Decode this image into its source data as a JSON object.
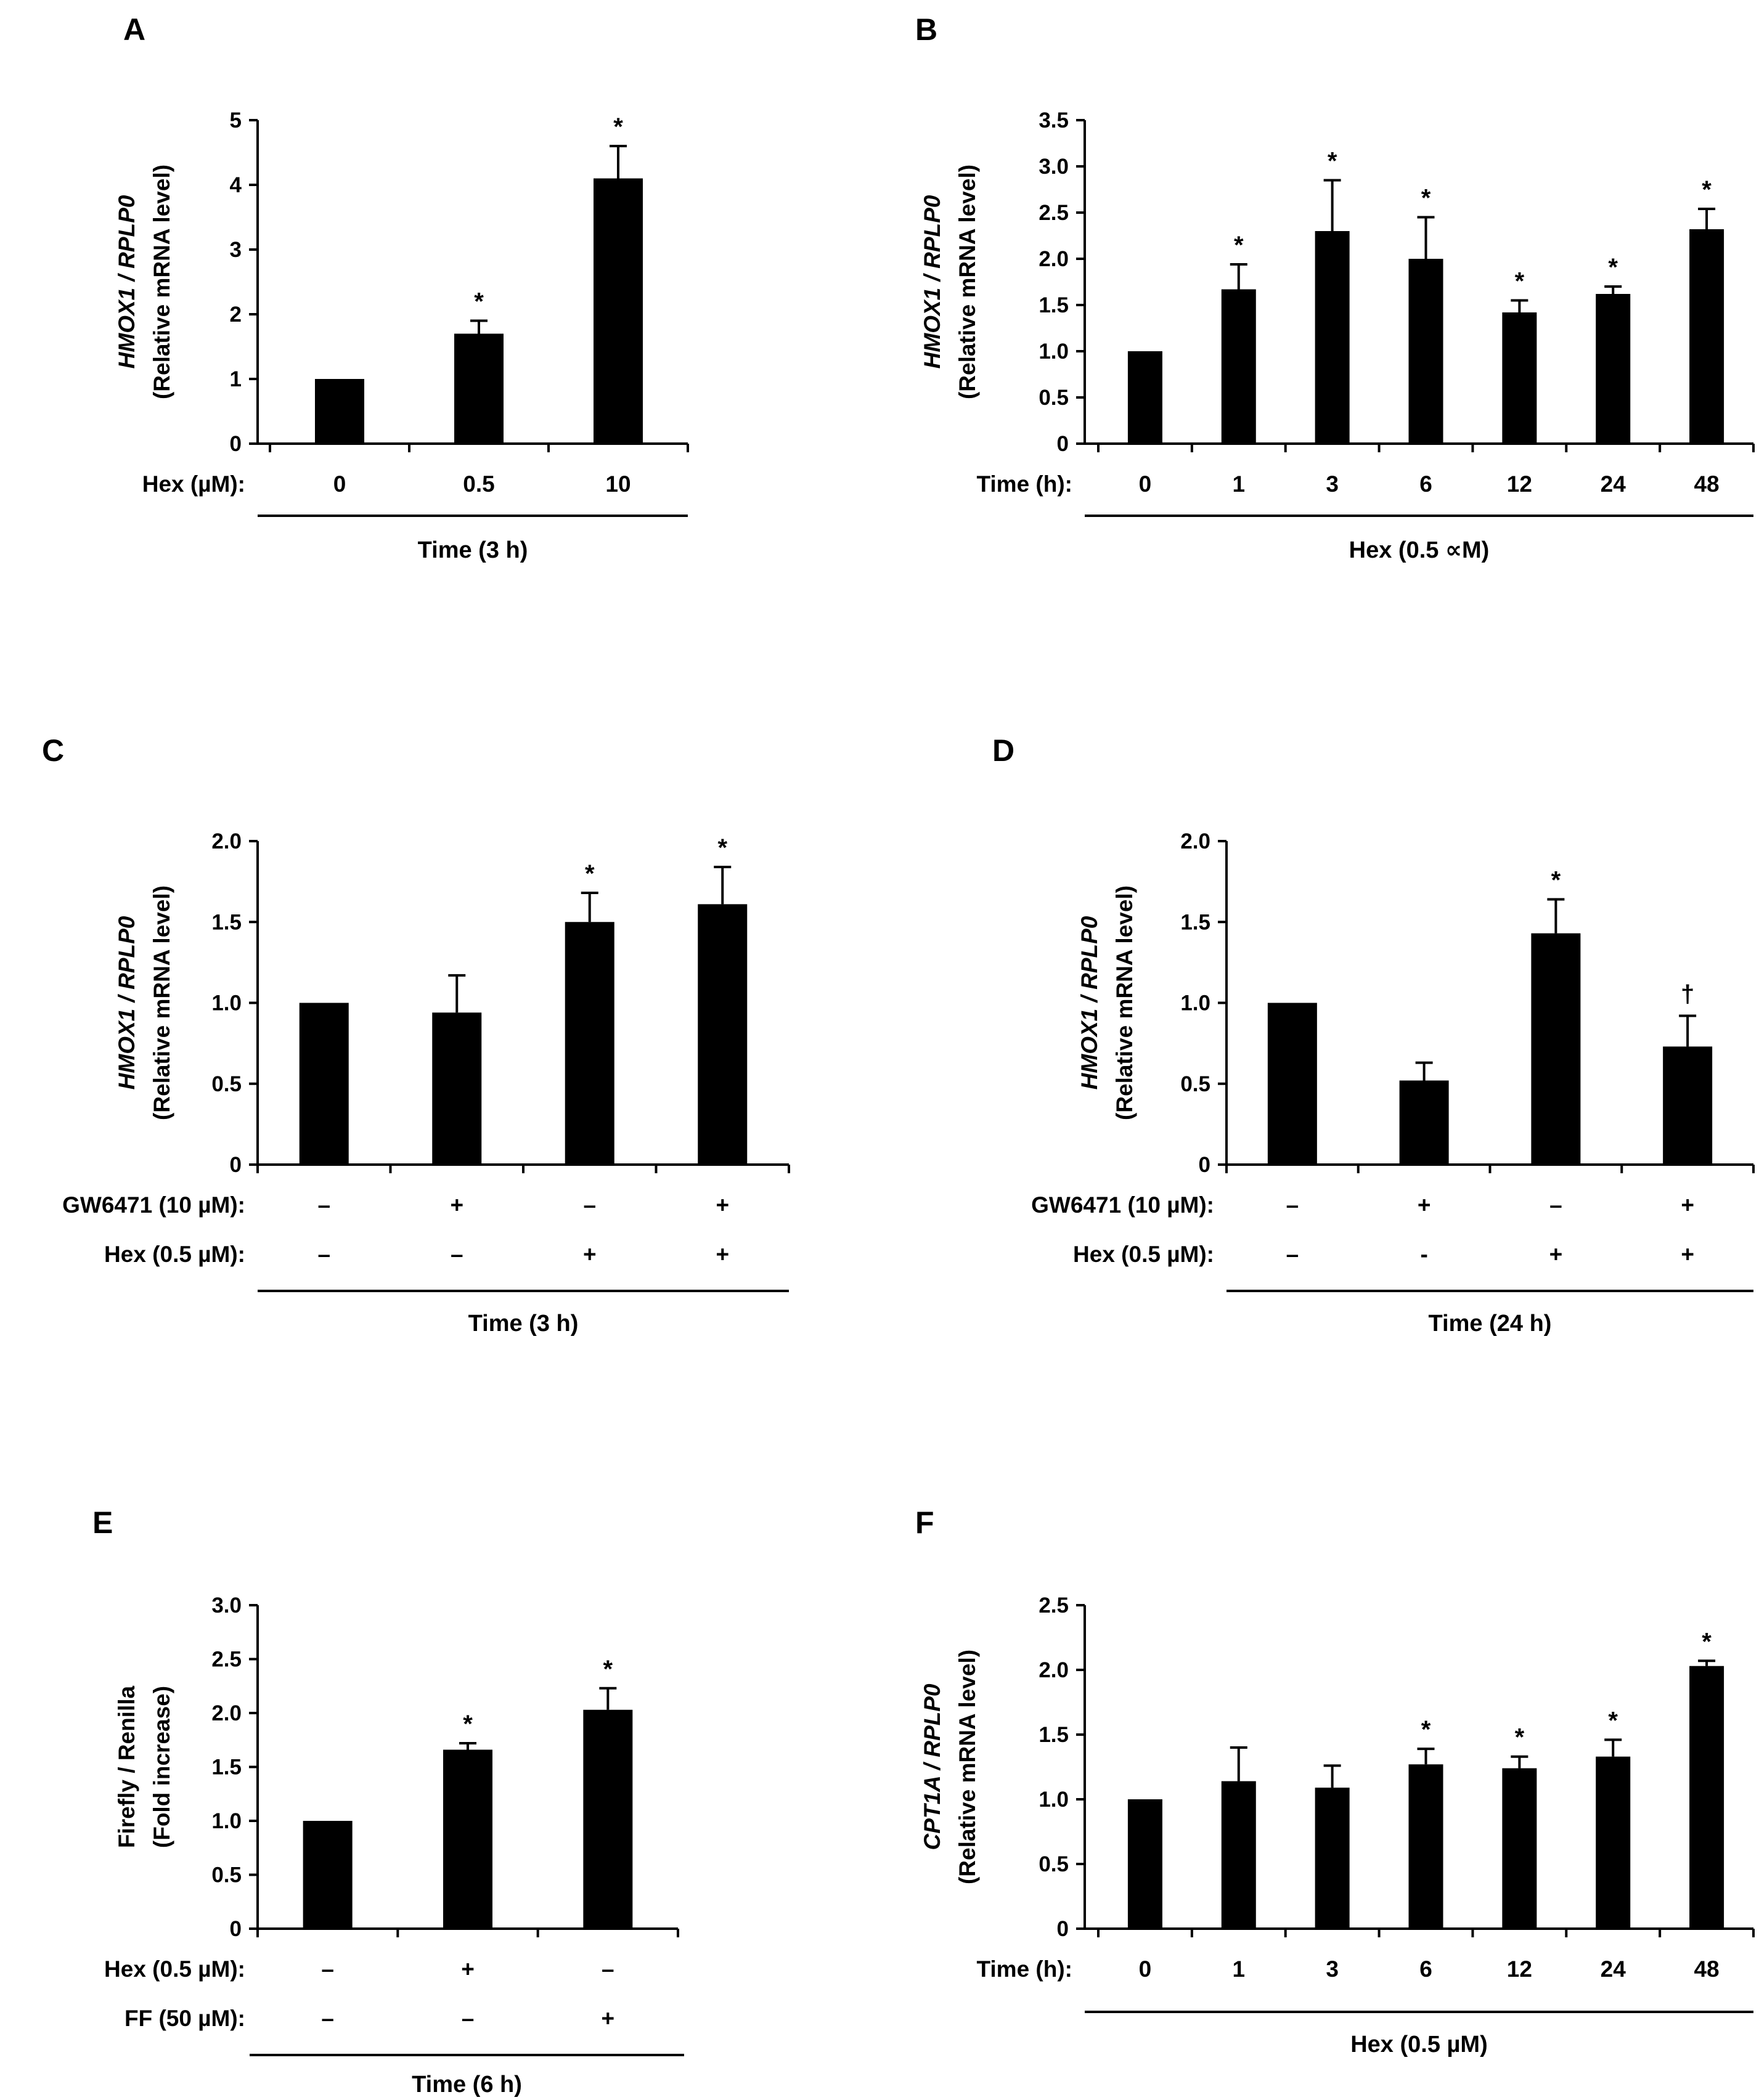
{
  "chart_data": [
    {
      "panel": "A",
      "type": "bar",
      "ylabel_gene": "HMOX1 / RPLP0",
      "ylabel_sub": "(Relative mRNA level)",
      "ylim": [
        0,
        5
      ],
      "yticks": [
        "0",
        "1",
        "2",
        "3",
        "4",
        "5"
      ],
      "cond_labels": [
        "Hex (µM):"
      ],
      "categories": [
        [
          "0"
        ],
        [
          "0.5"
        ],
        [
          "10"
        ]
      ],
      "values": [
        1.0,
        1.7,
        4.1
      ],
      "errors": [
        0,
        0.2,
        0.5
      ],
      "sig": [
        "",
        "*",
        "*"
      ],
      "footer": "Time (3 h)"
    },
    {
      "panel": "B",
      "type": "bar",
      "ylabel_gene": "HMOX1 / RPLP0",
      "ylabel_sub": "(Relative mRNA level)",
      "ylim": [
        0,
        3.5
      ],
      "yticks": [
        "0",
        "0.5",
        "1.0",
        "1.5",
        "2.0",
        "2.5",
        "3.0",
        "3.5"
      ],
      "cond_labels": [
        "Time (h):"
      ],
      "categories": [
        [
          "0"
        ],
        [
          "1"
        ],
        [
          "3"
        ],
        [
          "6"
        ],
        [
          "12"
        ],
        [
          "24"
        ],
        [
          "48"
        ]
      ],
      "values": [
        1.0,
        1.67,
        2.3,
        2.0,
        1.42,
        1.62,
        2.32
      ],
      "errors": [
        0,
        0.27,
        0.55,
        0.45,
        0.13,
        0.08,
        0.22
      ],
      "sig": [
        "",
        "*",
        "*",
        "*",
        "*",
        "*",
        "*"
      ],
      "footer": "Hex (0.5 ∝M)"
    },
    {
      "panel": "C",
      "type": "bar",
      "ylabel_gene": "HMOX1 / RPLP0",
      "ylabel_sub": "(Relative mRNA level)",
      "ylim": [
        0,
        2.0
      ],
      "yticks": [
        "0",
        "0.5",
        "1.0",
        "1.5",
        "2.0"
      ],
      "cond_labels": [
        "GW6471 (10 µM):",
        "Hex (0.5 µM):"
      ],
      "categories": [
        [
          "–",
          "–"
        ],
        [
          "+",
          "–"
        ],
        [
          "–",
          "+"
        ],
        [
          "+",
          "+"
        ]
      ],
      "values": [
        1.0,
        0.94,
        1.5,
        1.61
      ],
      "errors": [
        0,
        0.23,
        0.18,
        0.23
      ],
      "sig": [
        "",
        "",
        "*",
        "*"
      ],
      "footer": "Time  (3 h)"
    },
    {
      "panel": "D",
      "type": "bar",
      "ylabel_gene": "HMOX1 / RPLP0",
      "ylabel_sub": "(Relative mRNA level)",
      "ylim": [
        0,
        2.0
      ],
      "yticks": [
        "0",
        "0.5",
        "1.0",
        "1.5",
        "2.0"
      ],
      "cond_labels": [
        "GW6471 (10 µM):",
        "Hex (0.5 µM):"
      ],
      "categories": [
        [
          "–",
          "–"
        ],
        [
          "+",
          "-"
        ],
        [
          "–",
          "+"
        ],
        [
          "+",
          "+"
        ]
      ],
      "values": [
        1.0,
        0.52,
        1.43,
        0.73
      ],
      "errors": [
        0,
        0.11,
        0.21,
        0.19
      ],
      "sig": [
        "",
        "",
        "*",
        "†"
      ],
      "footer": "Time  (24 h)"
    },
    {
      "panel": "E",
      "type": "bar",
      "ylabel_gene": "Firefly / Renilla",
      "ylabel_sub": "(Fold increase)",
      "ylim": [
        0,
        3.0
      ],
      "yticks": [
        "0",
        "0.5",
        "1.0",
        "1.5",
        "2.0",
        "2.5",
        "3.0"
      ],
      "cond_labels": [
        "Hex (0.5 µM):",
        "FF (50 µM):"
      ],
      "categories": [
        [
          "–",
          "–"
        ],
        [
          "+",
          "–"
        ],
        [
          "–",
          "+"
        ]
      ],
      "values": [
        1.0,
        1.66,
        2.03
      ],
      "errors": [
        0,
        0.06,
        0.2
      ],
      "sig": [
        "",
        "*",
        "*"
      ],
      "footer": "Time (6 h)"
    },
    {
      "panel": "F",
      "type": "bar",
      "ylabel_gene": "CPT1A / RPLP0",
      "ylabel_sub": "(Relative mRNA level)",
      "ylim": [
        0,
        2.5
      ],
      "yticks": [
        "0",
        "0.5",
        "1.0",
        "1.5",
        "2.0",
        "2.5"
      ],
      "cond_labels": [
        "Time (h):"
      ],
      "categories": [
        [
          "0"
        ],
        [
          "1"
        ],
        [
          "3"
        ],
        [
          "6"
        ],
        [
          "12"
        ],
        [
          "24"
        ],
        [
          "48"
        ]
      ],
      "values": [
        1.0,
        1.14,
        1.09,
        1.27,
        1.24,
        1.33,
        2.03
      ],
      "errors": [
        0,
        0.26,
        0.17,
        0.12,
        0.09,
        0.13,
        0.04
      ],
      "sig": [
        "",
        "",
        "",
        "*",
        "*",
        "*",
        "*"
      ],
      "footer": "Hex (0.5 µM)"
    }
  ]
}
